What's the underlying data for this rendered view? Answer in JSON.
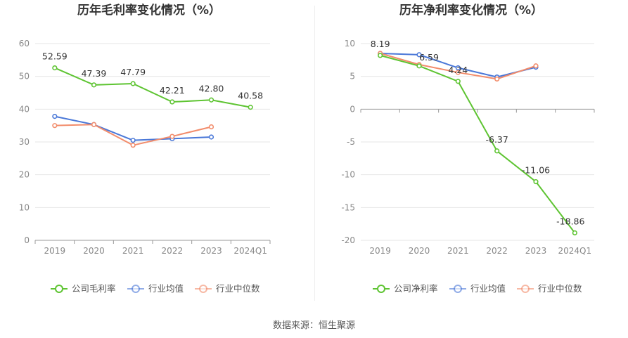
{
  "colors": {
    "company": "#5ec432",
    "industry_avg": "#4a78d8",
    "industry_median": "#f28c6b",
    "grid": "#e6e6e6",
    "axis": "#999999",
    "tick_text": "#888888",
    "title": "#333333"
  },
  "chart_data": [
    {
      "type": "line",
      "title": "历年毛利率变化情况（%）",
      "categories": [
        "2019",
        "2020",
        "2021",
        "2022",
        "2023",
        "2024Q1"
      ],
      "ylim": [
        0,
        60
      ],
      "yticks": [
        0,
        10,
        20,
        30,
        40,
        50,
        60
      ],
      "grid": true,
      "legend_position": "bottom",
      "series": [
        {
          "name": "公司毛利率",
          "color_key": "company",
          "values": [
            52.59,
            47.39,
            47.79,
            42.21,
            42.8,
            40.58
          ],
          "labels": [
            "52.59",
            "47.39",
            "47.79",
            "42.21",
            "42.80",
            "40.58"
          ]
        },
        {
          "name": "行业均值",
          "color_key": "industry_avg",
          "values": [
            37.8,
            35.3,
            30.5,
            31.0,
            31.5,
            null
          ]
        },
        {
          "name": "行业中位数",
          "color_key": "industry_median",
          "values": [
            35.0,
            35.3,
            29.0,
            31.7,
            34.6,
            null
          ]
        }
      ]
    },
    {
      "type": "line",
      "title": "历年净利率变化情况（%）",
      "categories": [
        "2019",
        "2020",
        "2021",
        "2022",
        "2023",
        "2024Q1"
      ],
      "ylim": [
        -20,
        10
      ],
      "yticks": [
        -20,
        -15,
        -10,
        -5,
        0,
        5,
        10
      ],
      "grid": true,
      "legend_position": "bottom",
      "series": [
        {
          "name": "公司净利率",
          "color_key": "company",
          "values": [
            8.19,
            6.59,
            4.24,
            -6.37,
            -11.06,
            -18.86
          ],
          "labels": [
            "8.19",
            "6.59",
            "4.24",
            "-6.37",
            "-11.06",
            "-18.86"
          ]
        },
        {
          "name": "行业均值",
          "color_key": "industry_avg",
          "values": [
            8.5,
            8.3,
            6.3,
            4.9,
            6.4,
            null
          ]
        },
        {
          "name": "行业中位数",
          "color_key": "industry_median",
          "values": [
            8.5,
            6.8,
            5.6,
            4.6,
            6.6,
            null
          ]
        }
      ]
    }
  ],
  "footer": {
    "source": "数据来源：恒生聚源"
  }
}
